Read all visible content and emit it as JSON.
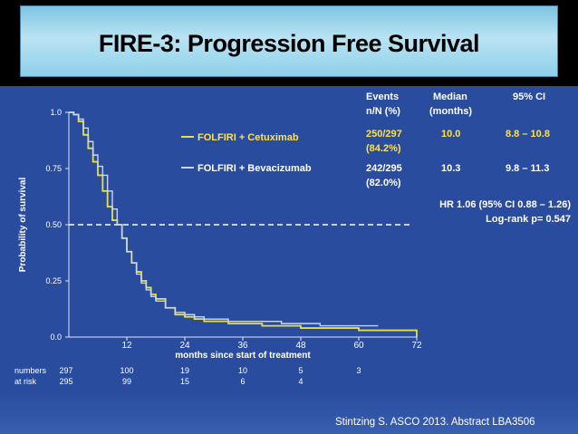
{
  "slide": {
    "title": "FIRE-3: Progression Free Survival",
    "citation": "Stintzing S. ASCO 2013. Abstract LBA3506"
  },
  "colors": {
    "background": "#2a4c9e",
    "cetuximab": "#e8e040",
    "bevacizumab": "#c8d6f2",
    "text": "#ffffff",
    "highlight": "#ffe14a"
  },
  "chart_data": {
    "type": "line",
    "title": "",
    "xlabel": "months since start of treatment",
    "ylabel": "Probability of survival",
    "xlim": [
      0,
      72
    ],
    "ylim": [
      0,
      1.0
    ],
    "x_ticks": [
      "12",
      "24",
      "36",
      "48",
      "60",
      "72"
    ],
    "y_ticks": [
      "1.0",
      "0.75",
      "0.50",
      "0.25",
      "0.0"
    ],
    "reference_line": {
      "y": 0.5,
      "style": "dashed"
    },
    "series": [
      {
        "name": "FOLFIRI + Cetuximab",
        "color": "#e8e040",
        "x": [
          0,
          1,
          2,
          3,
          4,
          5,
          6,
          7,
          8,
          9,
          10,
          11,
          12,
          13,
          14,
          15,
          16,
          17,
          18,
          20,
          22,
          24,
          26,
          28,
          30,
          33,
          36,
          40,
          44,
          48,
          52,
          56,
          60,
          64,
          68,
          72
        ],
        "y": [
          1.0,
          0.99,
          0.96,
          0.9,
          0.84,
          0.78,
          0.72,
          0.65,
          0.58,
          0.52,
          0.5,
          0.44,
          0.38,
          0.33,
          0.29,
          0.25,
          0.22,
          0.19,
          0.17,
          0.13,
          0.1,
          0.09,
          0.08,
          0.07,
          0.07,
          0.06,
          0.06,
          0.05,
          0.05,
          0.04,
          0.04,
          0.04,
          0.03,
          0.03,
          0.03,
          0.0
        ]
      },
      {
        "name": "FOLFIRI + Bevacizumab",
        "color": "#c8d6f2",
        "x": [
          0,
          1,
          2,
          3,
          4,
          5,
          6,
          7,
          8,
          9,
          10,
          11,
          12,
          13,
          14,
          15,
          16,
          17,
          18,
          20,
          22,
          24,
          26,
          28,
          30,
          33,
          36,
          40,
          44,
          48,
          52,
          56,
          60,
          64
        ],
        "y": [
          1.0,
          0.99,
          0.97,
          0.93,
          0.87,
          0.81,
          0.76,
          0.72,
          0.65,
          0.57,
          0.5,
          0.44,
          0.38,
          0.33,
          0.28,
          0.24,
          0.21,
          0.18,
          0.16,
          0.13,
          0.11,
          0.1,
          0.09,
          0.08,
          0.08,
          0.07,
          0.07,
          0.07,
          0.06,
          0.06,
          0.05,
          0.05,
          0.05,
          0.05
        ]
      }
    ],
    "table": {
      "headers": [
        "Events n/N (%)",
        "Median (months)",
        "95% CI"
      ],
      "rows": [
        {
          "arm": "FOLFIRI + Cetuximab",
          "events": "250/297",
          "pct": "(84.2%)",
          "median": "10.0",
          "ci": "8.8 – 10.8"
        },
        {
          "arm": "FOLFIRI + Bevacizumab",
          "events": "242/295",
          "pct": "(82.0%)",
          "median": "10.3",
          "ci": "9.8 – 11.3"
        }
      ]
    },
    "hr_text": "HR 1.06 (95% CI 0.88 – 1.26)",
    "logrank_text": "Log-rank p= 0.547",
    "at_risk": {
      "label_line1": "numbers",
      "label_line2": "at risk",
      "cetuximab": [
        "297",
        "100",
        "19",
        "10",
        "5",
        "3"
      ],
      "bevacizumab": [
        "295",
        "99",
        "15",
        "6",
        "4",
        ""
      ]
    }
  }
}
